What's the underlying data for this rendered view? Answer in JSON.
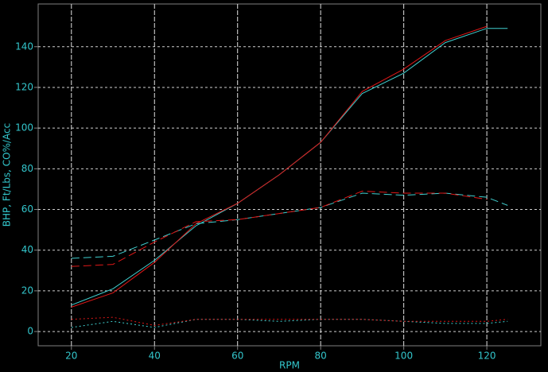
{
  "chart_data": {
    "type": "line",
    "x_label": "RPM",
    "y_label": "BHP, Ft/Lbs, CO%/Acc",
    "x": [
      20,
      30,
      40,
      50,
      60,
      70,
      80,
      90,
      100,
      110,
      120,
      125
    ],
    "xlim": [
      12,
      133
    ],
    "xticks": [
      20,
      40,
      60,
      80,
      100,
      120
    ],
    "ylim": [
      -7,
      161
    ],
    "yticks": [
      0,
      20,
      40,
      60,
      80,
      100,
      120,
      140
    ],
    "grid": true,
    "series": [
      {
        "color": "#40d0d0",
        "style": "solid",
        "values": [
          13,
          21,
          35,
          52,
          63,
          77,
          93,
          117,
          127,
          142,
          149,
          149
        ]
      },
      {
        "color": "#e01818",
        "style": "solid",
        "values": [
          12,
          19,
          34,
          53,
          63,
          77,
          93,
          118,
          129,
          143,
          150,
          null
        ]
      },
      {
        "color": "#40d0d0",
        "style": "dashed",
        "values": [
          36,
          37,
          45,
          53,
          55,
          58,
          61,
          68,
          67,
          68,
          66,
          62
        ]
      },
      {
        "color": "#e01818",
        "style": "dashed",
        "values": [
          32,
          33,
          44,
          54,
          55,
          58,
          61,
          69,
          68,
          68,
          65,
          null
        ]
      },
      {
        "color": "#40d0d0",
        "style": "dotted",
        "values": [
          2,
          5,
          2,
          6,
          6,
          5,
          6,
          6,
          5,
          4,
          4,
          5
        ]
      },
      {
        "color": "#e01818",
        "style": "dotted",
        "values": [
          6,
          7,
          3,
          6,
          6,
          6,
          6,
          6,
          5,
          5,
          5,
          6
        ]
      }
    ]
  }
}
